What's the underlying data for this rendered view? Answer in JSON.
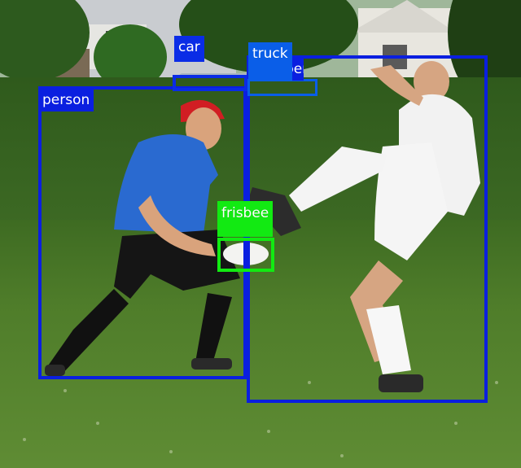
{
  "colors": {
    "person": "#0a1fe0",
    "car": "#0a2ce6",
    "truck": "#0a5ee8",
    "frisbee": "#12ea12"
  },
  "detections": [
    {
      "label": "person",
      "color_key": "person"
    },
    {
      "label": "person",
      "color_key": "person"
    },
    {
      "label": "car",
      "color_key": "car"
    },
    {
      "label": "truck",
      "color_key": "truck"
    },
    {
      "label": "frisbee",
      "color_key": "frisbee"
    }
  ]
}
